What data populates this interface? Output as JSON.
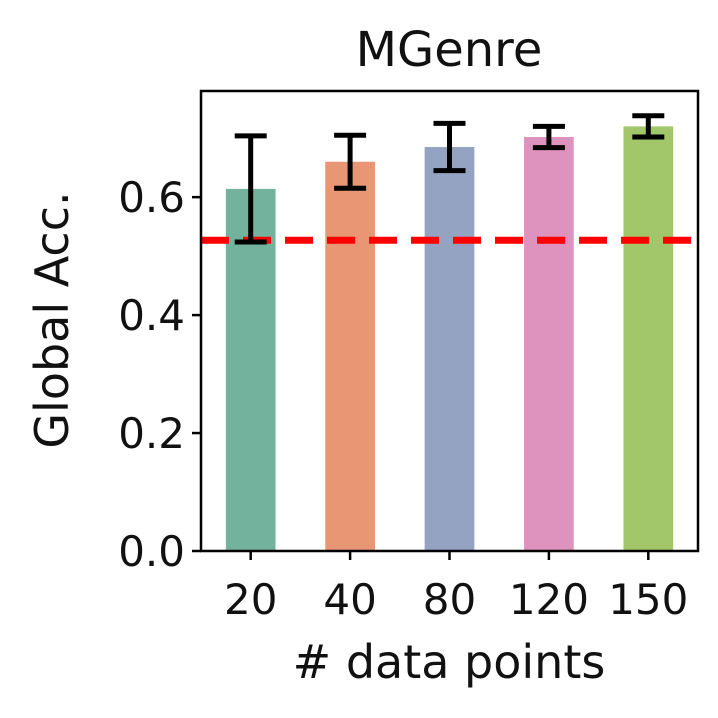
{
  "chart_data": {
    "type": "bar",
    "title": "MGenre",
    "xlabel": "# data points",
    "ylabel": "Global Acc.",
    "categories": [
      "20",
      "40",
      "80",
      "120",
      "150"
    ],
    "values": [
      0.614,
      0.66,
      0.685,
      0.702,
      0.72
    ],
    "error": [
      0.09,
      0.045,
      0.04,
      0.018,
      0.018
    ],
    "bar_colors": [
      "#73b39d",
      "#e89673",
      "#94a3c2",
      "#de93be",
      "#a2c66a"
    ],
    "ylim": [
      0,
      0.78
    ],
    "yticks": [
      0.0,
      0.2,
      0.4,
      0.6
    ],
    "ytick_labels": [
      "0.0",
      "0.2",
      "0.4",
      "0.6"
    ],
    "reference_line": {
      "value": 0.527,
      "color": "#ff0000",
      "style": "dashed"
    },
    "grid": false,
    "legend": "none"
  }
}
